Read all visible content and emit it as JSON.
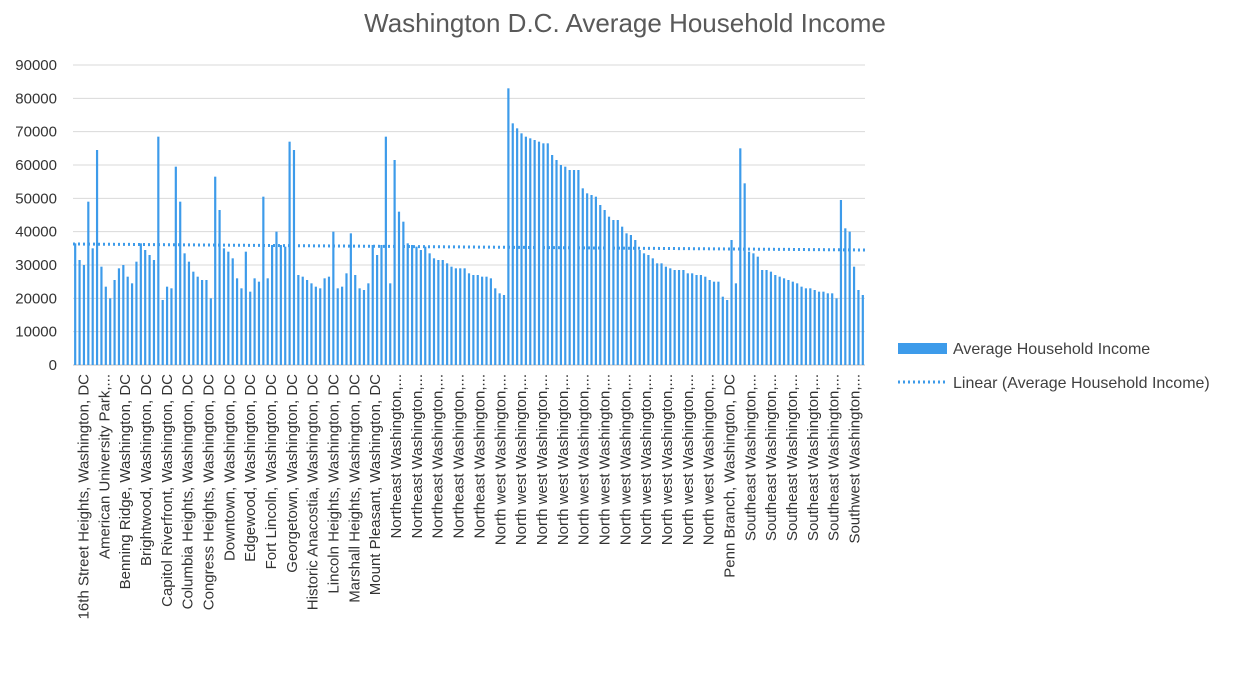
{
  "colors": {
    "bar": "#3d9bea",
    "trend": "#3d9bea",
    "grid": "#d9d9d9",
    "axis": "#bfbfbf",
    "text": "#333333",
    "title": "#595959"
  },
  "chart_data": {
    "type": "bar",
    "title": "Washington D.C. Average Household Income",
    "xlabel": "",
    "ylabel": "",
    "ylim": [
      0,
      90000
    ],
    "yticks": [
      0,
      10000,
      20000,
      30000,
      40000,
      50000,
      60000,
      70000,
      80000,
      90000
    ],
    "grid": true,
    "legend_position": "right",
    "x_tick_labels": [
      "16th Street Heights, Washington, DC",
      "American University Park,...",
      "Benning Ridge, Washington, DC",
      "Brightwood, Washington, DC",
      "Capitol Riverfront, Washington, DC",
      "Columbia Heights, Washington, DC",
      "Congress Heights, Washington, DC",
      "Downtown, Washington, DC",
      "Edgewood, Washington, DC",
      "Fort Lincoln, Washington, DC",
      "Georgetown, Washington, DC",
      "Historic Anacostia, Washington, DC",
      "Lincoln Heights, Washington, DC",
      "Marshall Heights, Washington, DC",
      "Mount Pleasant, Washington, DC",
      "Northeast Washington,...",
      "Northeast Washington,...",
      "Northeast Washington,...",
      "Northeast Washington,...",
      "Northeast Washington,...",
      "North west Washington,...",
      "North west Washington,...",
      "North west Washington,...",
      "North west Washington,...",
      "North west Washington,...",
      "North west Washington,...",
      "North west Washington,...",
      "North west Washington,...",
      "North west Washington,...",
      "North west Washington,...",
      "North west Washington,...",
      "Penn Branch, Washington, DC",
      "Southeast Washington,...",
      "Southeast Washington,...",
      "Southeast Washington,...",
      "Southeast Washington,...",
      "Southeast Washington,...",
      "Southwest Washington,..."
    ],
    "series": [
      {
        "name": "Average Household Income",
        "values": [
          36500,
          31500,
          30000,
          49000,
          35000,
          64500,
          29500,
          23500,
          20000,
          25500,
          29000,
          30000,
          26500,
          24500,
          31000,
          36500,
          34500,
          33000,
          31500,
          68500,
          19500,
          23500,
          23000,
          59500,
          49000,
          33500,
          31000,
          28000,
          26500,
          25500,
          25500,
          20000,
          56500,
          46500,
          35000,
          34000,
          32000,
          26000,
          23000,
          34000,
          22000,
          26000,
          25000,
          50500,
          26000,
          36000,
          40000,
          36000,
          35500,
          67000,
          64500,
          27000,
          26500,
          25500,
          24500,
          23500,
          23000,
          26000,
          26500,
          40000,
          23000,
          23500,
          27500,
          39500,
          27000,
          23000,
          22500,
          24500,
          36000,
          33000,
          36000,
          68500,
          24500,
          61500,
          46000,
          43000,
          36500,
          36000,
          35500,
          34500,
          35500,
          33500,
          32000,
          31500,
          31500,
          30500,
          29500,
          29000,
          29000,
          29000,
          27500,
          27000,
          27000,
          26500,
          26500,
          26000,
          23000,
          21500,
          21000,
          83000,
          72500,
          71000,
          69500,
          68500,
          68000,
          67500,
          67000,
          66500,
          66500,
          63000,
          61500,
          60000,
          59500,
          58500,
          58500,
          58500,
          53000,
          51500,
          51000,
          50500,
          48000,
          46500,
          44500,
          43500,
          43500,
          41500,
          39500,
          39000,
          37500,
          34500,
          33500,
          33000,
          32000,
          30500,
          30500,
          29500,
          29000,
          28500,
          28500,
          28500,
          27500,
          27500,
          27000,
          27000,
          26500,
          25500,
          25000,
          25000,
          20500,
          19500,
          37500,
          24500,
          65000,
          54500,
          34000,
          33500,
          32500,
          28500,
          28500,
          28000,
          27000,
          26500,
          26000,
          25500,
          25000,
          24500,
          23500,
          23000,
          23000,
          22500,
          22000,
          22000,
          21500,
          21500,
          20000,
          49500,
          41000,
          40000,
          29500,
          22500,
          21000
        ]
      },
      {
        "name": "Linear (Average Household Income)",
        "start": 36300,
        "end": 34500
      }
    ]
  }
}
